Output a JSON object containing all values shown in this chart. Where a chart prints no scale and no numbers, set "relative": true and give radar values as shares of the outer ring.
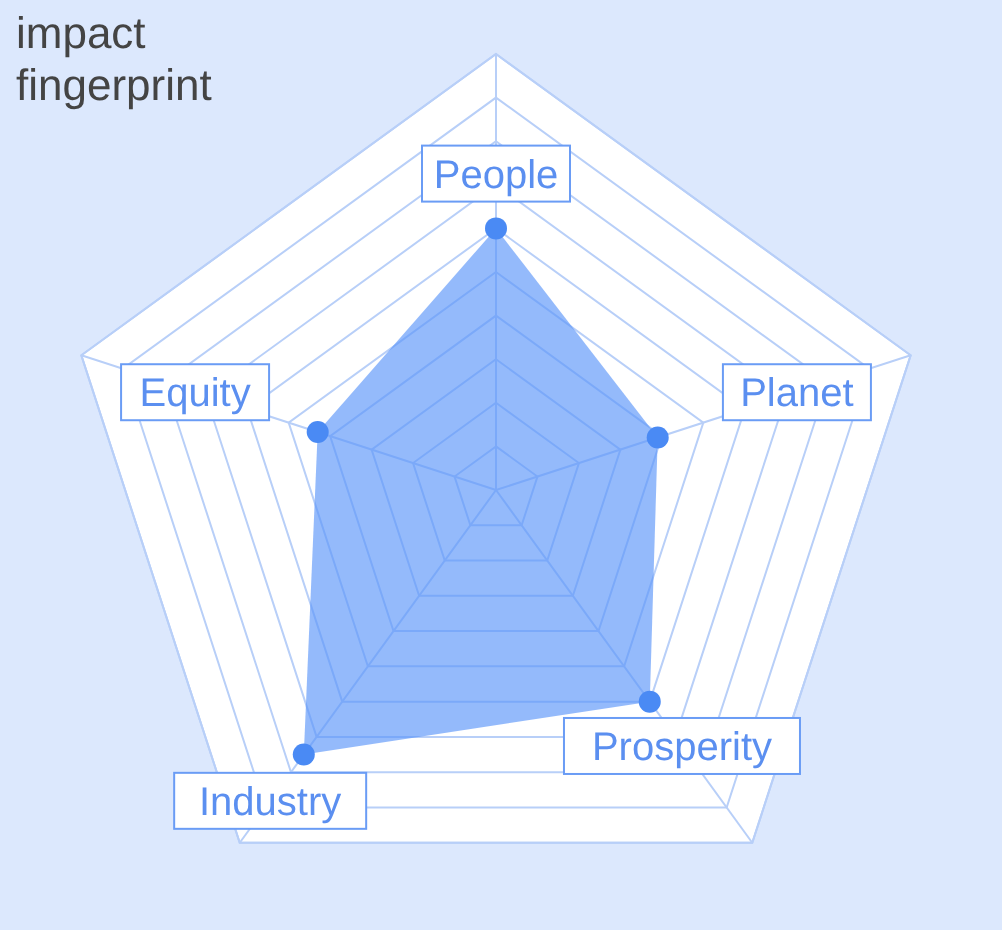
{
  "chart_data": {
    "type": "radar",
    "title": "impact fingerprint",
    "categories": [
      "People",
      "Planet",
      "Prosperity",
      "Industry",
      "Equity"
    ],
    "series": [
      {
        "color": "#5b95f9",
        "values": [
          0.6,
          0.39,
          0.6,
          0.75,
          0.43
        ]
      }
    ],
    "relative": true,
    "marker": "circle",
    "grid": true
  }
}
